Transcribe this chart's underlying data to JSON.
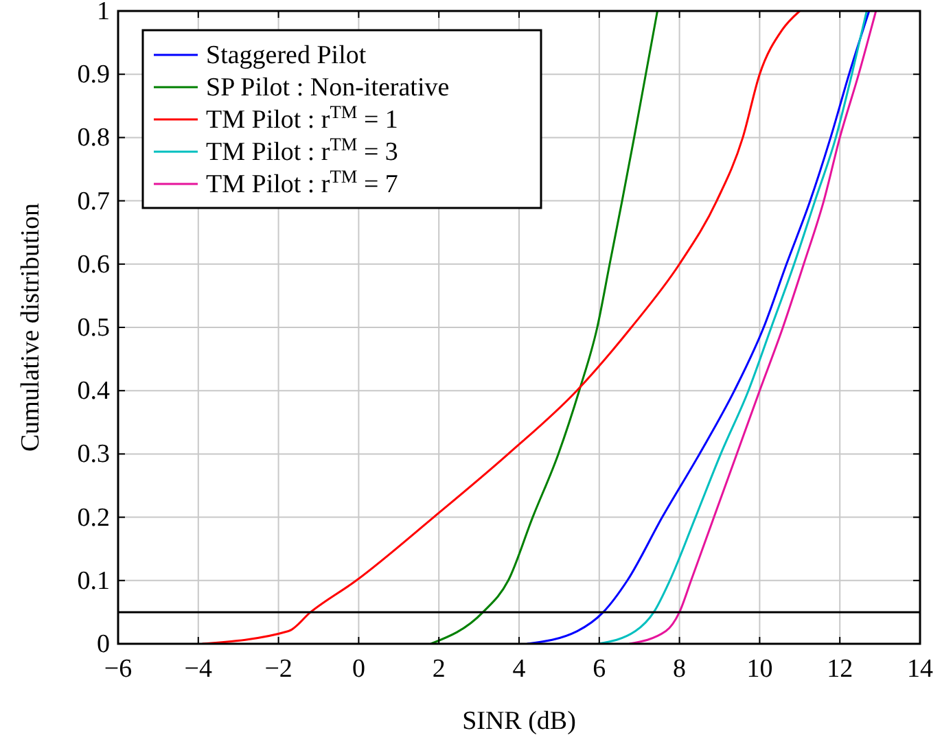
{
  "chart_data": {
    "type": "line",
    "xlabel": "SINR (dB)",
    "ylabel": "Cumulative distribution",
    "xlim": [
      -6,
      14
    ],
    "ylim": [
      0,
      1
    ],
    "xticks": [
      {
        "value": -6,
        "label": "−6"
      },
      {
        "value": -4,
        "label": "−4"
      },
      {
        "value": -2,
        "label": "−2"
      },
      0,
      2,
      4,
      6,
      8,
      10,
      12,
      14
    ],
    "yticks": [
      0,
      0.1,
      0.2,
      0.3,
      0.4,
      0.5,
      0.6,
      0.7,
      0.8,
      0.9,
      1
    ],
    "grid": true,
    "legend": "top left",
    "marker": "none",
    "line_style": "solid",
    "ref_lines": [
      {
        "axis": "y",
        "value": 0.05,
        "color": "#000000"
      }
    ],
    "series": [
      {
        "name": "Staggered Pilot",
        "color": "#0000ff",
        "x": [
          4.2,
          5.45,
          6.1,
          6.7,
          7.57,
          8.5,
          9.37,
          10.1,
          10.67,
          11.26,
          11.77,
          12.23,
          12.73
        ],
        "values": [
          0,
          0.02,
          0.05,
          0.1,
          0.2,
          0.3,
          0.4,
          0.5,
          0.6,
          0.7,
          0.8,
          0.9,
          1
        ]
      },
      {
        "name": "SP Pilot : Non-iterative",
        "color": "#008000",
        "x": [
          1.8,
          3.1,
          3.73,
          4.34,
          4.98,
          5.5,
          5.95,
          6.26,
          6.57,
          6.87,
          7.16,
          7.45
        ],
        "values": [
          0,
          0.05,
          0.1,
          0.2,
          0.3,
          0.4,
          0.5,
          0.6,
          0.7,
          0.8,
          0.9,
          1
        ]
      },
      {
        "name": "TM Pilot : r$^{TM}$ = 1",
        "color": "#ff0000",
        "x": [
          -3.9,
          -1.75,
          -1.2,
          -0.06,
          1.87,
          3.73,
          5.44,
          6.8,
          8.0,
          8.93,
          9.58,
          10.0,
          10.56,
          11.0
        ],
        "values": [
          0,
          0.02,
          0.05,
          0.1,
          0.2,
          0.3,
          0.4,
          0.5,
          0.6,
          0.7,
          0.8,
          0.9,
          0.97,
          1
        ]
      },
      {
        "name": "TM Pilot : r$^{TM}$ = 3",
        "color": "#00bfbf",
        "x": [
          5.97,
          6.9,
          7.36,
          7.76,
          8.4,
          9.03,
          9.72,
          10.29,
          10.86,
          11.38,
          11.9,
          12.3,
          12.67
        ],
        "values": [
          0,
          0.02,
          0.05,
          0.1,
          0.2,
          0.3,
          0.4,
          0.5,
          0.6,
          0.7,
          0.8,
          0.9,
          1
        ]
      },
      {
        "name": "TM Pilot : r$^{TM}$ = 7",
        "color": "#e6149b",
        "x": [
          6.75,
          7.66,
          8.0,
          8.29,
          8.86,
          9.43,
          10.0,
          10.58,
          11.1,
          11.6,
          12.0,
          12.47,
          12.9
        ],
        "values": [
          0,
          0.02,
          0.05,
          0.1,
          0.2,
          0.3,
          0.4,
          0.5,
          0.6,
          0.7,
          0.8,
          0.9,
          1
        ]
      }
    ]
  }
}
